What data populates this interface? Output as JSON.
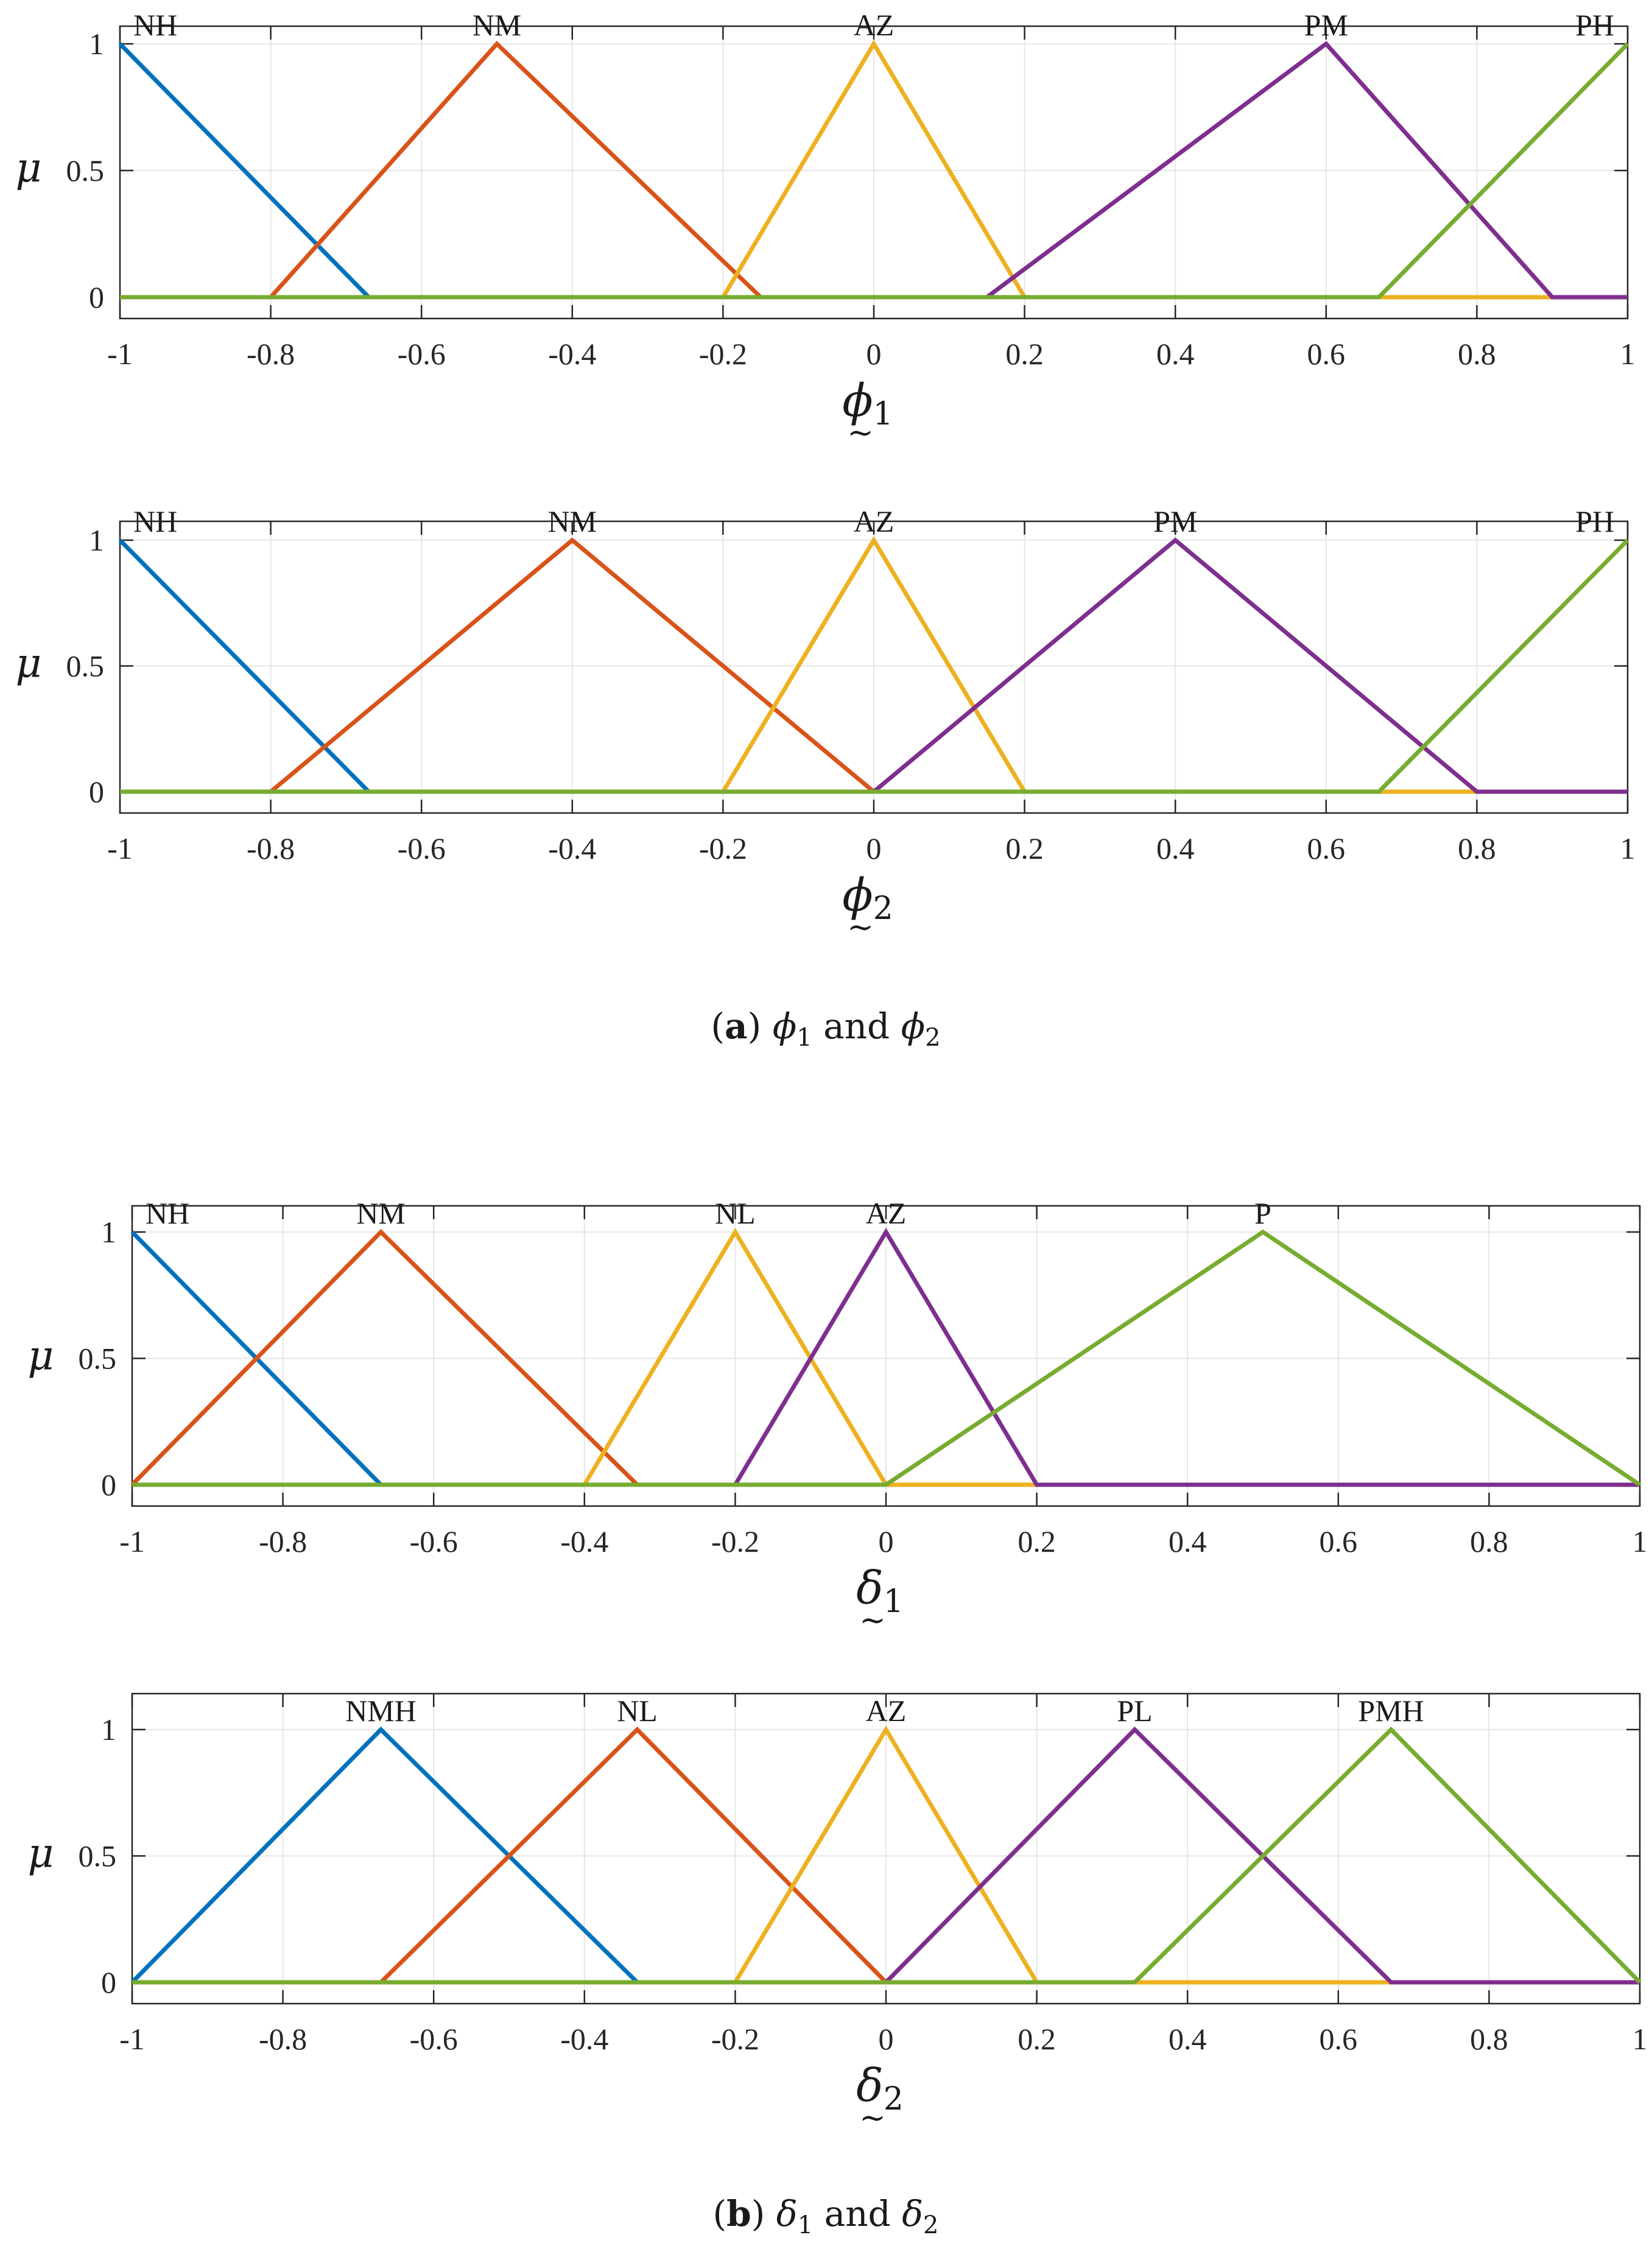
{
  "colors": {
    "series": [
      "#0072BD",
      "#D95319",
      "#EDB120",
      "#7E2F8E",
      "#77AC30"
    ],
    "grid": "#e6e6e6",
    "axis": "#262626"
  },
  "chart_data": [
    {
      "type": "line",
      "ylabel": "μ",
      "xlabel": {
        "main": "ϕ",
        "sub": "1",
        "tilde": "~"
      },
      "xlim": [
        -1,
        1
      ],
      "ylim": [
        0,
        1.1
      ],
      "xticks": [
        "-1",
        "-0.8",
        "-0.6",
        "-0.4",
        "-0.2",
        "0",
        "0.2",
        "0.4",
        "0.6",
        "0.8",
        "1"
      ],
      "yticks": [
        "0",
        "0.5",
        "1"
      ],
      "grid": true,
      "series": [
        {
          "name": "NH",
          "points": [
            [
              -1,
              1
            ],
            [
              -0.67,
              0
            ],
            [
              1,
              0
            ]
          ]
        },
        {
          "name": "NM",
          "points": [
            [
              -1,
              0
            ],
            [
              -0.8,
              0
            ],
            [
              -0.5,
              1
            ],
            [
              -0.15,
              0
            ],
            [
              1,
              0
            ]
          ]
        },
        {
          "name": "AZ",
          "points": [
            [
              -1,
              0
            ],
            [
              -0.2,
              0
            ],
            [
              0,
              1
            ],
            [
              0.2,
              0
            ],
            [
              1,
              0
            ]
          ]
        },
        {
          "name": "PM",
          "points": [
            [
              -1,
              0
            ],
            [
              0.15,
              0
            ],
            [
              0.6,
              1
            ],
            [
              0.9,
              0
            ],
            [
              1,
              0
            ]
          ]
        },
        {
          "name": "PH",
          "points": [
            [
              -1,
              0
            ],
            [
              0.67,
              0
            ],
            [
              1,
              1
            ]
          ]
        }
      ]
    },
    {
      "type": "line",
      "ylabel": "μ",
      "xlabel": {
        "main": "ϕ",
        "sub": "2",
        "tilde": "~"
      },
      "xlim": [
        -1,
        1
      ],
      "ylim": [
        0,
        1.1
      ],
      "xticks": [
        "-1",
        "-0.8",
        "-0.6",
        "-0.4",
        "-0.2",
        "0",
        "0.2",
        "0.4",
        "0.6",
        "0.8",
        "1"
      ],
      "yticks": [
        "0",
        "0.5",
        "1"
      ],
      "grid": true,
      "series": [
        {
          "name": "NH",
          "points": [
            [
              -1,
              1
            ],
            [
              -0.67,
              0
            ],
            [
              1,
              0
            ]
          ]
        },
        {
          "name": "NM",
          "points": [
            [
              -1,
              0
            ],
            [
              -0.8,
              0
            ],
            [
              -0.4,
              1
            ],
            [
              0,
              0
            ],
            [
              1,
              0
            ]
          ]
        },
        {
          "name": "AZ",
          "points": [
            [
              -1,
              0
            ],
            [
              -0.2,
              0
            ],
            [
              0,
              1
            ],
            [
              0.2,
              0
            ],
            [
              1,
              0
            ]
          ]
        },
        {
          "name": "PM",
          "points": [
            [
              -1,
              0
            ],
            [
              0,
              0
            ],
            [
              0.4,
              1
            ],
            [
              0.8,
              0
            ],
            [
              1,
              0
            ]
          ]
        },
        {
          "name": "PH",
          "points": [
            [
              -1,
              0
            ],
            [
              0.67,
              0
            ],
            [
              1,
              1
            ]
          ]
        }
      ]
    },
    {
      "type": "line",
      "ylabel": "μ",
      "xlabel": {
        "main": "δ",
        "sub": "1",
        "tilde": "~"
      },
      "xlim": [
        -1,
        1
      ],
      "ylim": [
        0,
        1.1
      ],
      "xticks": [
        "-1",
        "-0.8",
        "-0.6",
        "-0.4",
        "-0.2",
        "0",
        "0.2",
        "0.4",
        "0.6",
        "0.8",
        "1"
      ],
      "yticks": [
        "0",
        "0.5",
        "1"
      ],
      "grid": true,
      "series": [
        {
          "name": "NH",
          "points": [
            [
              -1,
              1
            ],
            [
              -0.67,
              0
            ],
            [
              1,
              0
            ]
          ]
        },
        {
          "name": "NM",
          "points": [
            [
              -1,
              0
            ],
            [
              -0.67,
              1
            ],
            [
              -0.33,
              0
            ],
            [
              1,
              0
            ]
          ]
        },
        {
          "name": "NL",
          "points": [
            [
              -1,
              0
            ],
            [
              -0.4,
              0
            ],
            [
              -0.2,
              1
            ],
            [
              0,
              0
            ],
            [
              1,
              0
            ]
          ]
        },
        {
          "name": "AZ",
          "points": [
            [
              -1,
              0
            ],
            [
              -0.2,
              0
            ],
            [
              0,
              1
            ],
            [
              0.2,
              0
            ],
            [
              1,
              0
            ]
          ]
        },
        {
          "name": "P",
          "points": [
            [
              -1,
              0
            ],
            [
              0,
              0
            ],
            [
              0.5,
              1
            ],
            [
              1,
              0
            ]
          ]
        }
      ]
    },
    {
      "type": "line",
      "ylabel": "μ",
      "xlabel": {
        "main": "δ",
        "sub": "2",
        "tilde": "~"
      },
      "xlim": [
        -1,
        1
      ],
      "ylim": [
        0,
        1.1
      ],
      "xticks": [
        "-1",
        "-0.8",
        "-0.6",
        "-0.4",
        "-0.2",
        "0",
        "0.2",
        "0.4",
        "0.6",
        "0.8",
        "1"
      ],
      "yticks": [
        "0",
        "0.5",
        "1"
      ],
      "grid": true,
      "series": [
        {
          "name": "NMH",
          "points": [
            [
              -1,
              0
            ],
            [
              -0.67,
              1
            ],
            [
              -0.33,
              0
            ],
            [
              1,
              0
            ]
          ]
        },
        {
          "name": "NL",
          "points": [
            [
              -1,
              0
            ],
            [
              -0.67,
              0
            ],
            [
              -0.33,
              1
            ],
            [
              0,
              0
            ],
            [
              1,
              0
            ]
          ]
        },
        {
          "name": "AZ",
          "points": [
            [
              -1,
              0
            ],
            [
              -0.2,
              0
            ],
            [
              0,
              1
            ],
            [
              0.2,
              0
            ],
            [
              1,
              0
            ]
          ]
        },
        {
          "name": "PL",
          "points": [
            [
              -1,
              0
            ],
            [
              0,
              0
            ],
            [
              0.33,
              1
            ],
            [
              0.67,
              0
            ],
            [
              1,
              0
            ]
          ]
        },
        {
          "name": "PMH",
          "points": [
            [
              -1,
              0
            ],
            [
              0.33,
              0
            ],
            [
              0.67,
              1
            ],
            [
              1,
              0
            ]
          ]
        }
      ]
    }
  ],
  "captions": [
    {
      "letter": "a",
      "sym1": "ϕ",
      "sub1": "1",
      "and": "and",
      "sym2": "ϕ",
      "sub2": "2"
    },
    {
      "letter": "b",
      "sym1": "δ",
      "sub1": "1",
      "and": "and",
      "sym2": "δ",
      "sub2": "2"
    }
  ]
}
